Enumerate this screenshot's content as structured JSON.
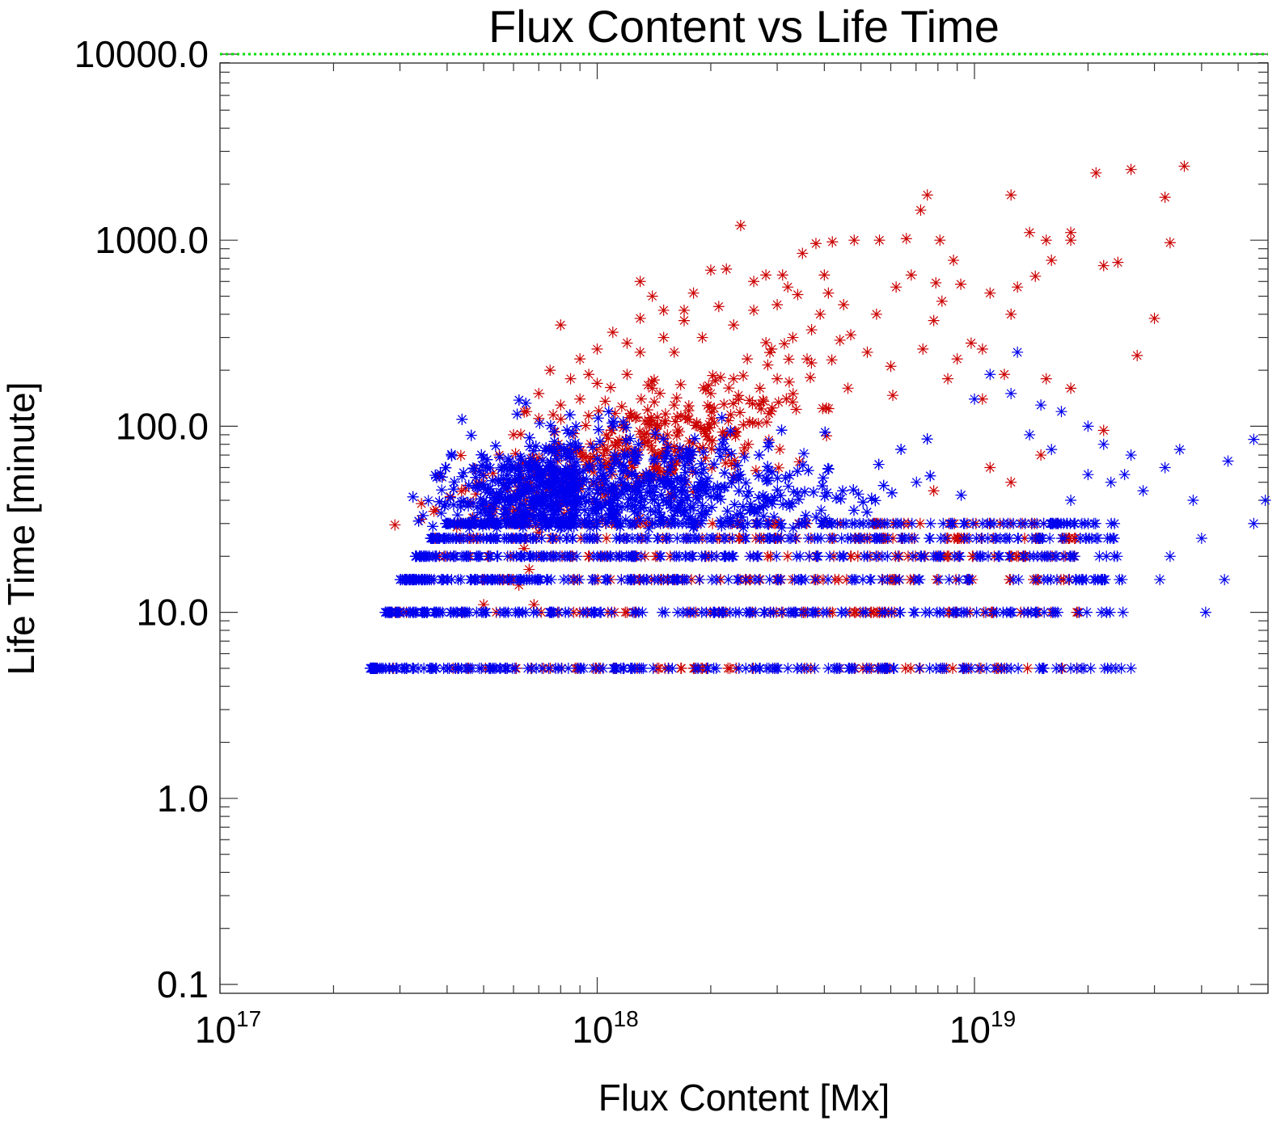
{
  "chart_data": {
    "type": "scatter",
    "title": "Flux Content vs Life Time",
    "xlabel": "Flux Content [Mx]",
    "ylabel": "Life Time [minute]",
    "xscale": "log",
    "yscale": "log",
    "xlim": [
      1e+17,
      6e+19
    ],
    "ylim": [
      0.1,
      10000
    ],
    "xticks": [
      {
        "value": 1e+17,
        "base": "10",
        "exp": "17"
      },
      {
        "value": 1e+18,
        "base": "10",
        "exp": "18"
      },
      {
        "value": 1e+19,
        "base": "10",
        "exp": "19"
      }
    ],
    "yticks": [
      {
        "value": 0.1,
        "label": "0.1"
      },
      {
        "value": 1,
        "label": "1.0"
      },
      {
        "value": 10,
        "label": "10.0"
      },
      {
        "value": 100,
        "label": "100.0"
      },
      {
        "value": 1000,
        "label": "1000.0"
      },
      {
        "value": 10000,
        "label": "10000.0"
      }
    ],
    "marker": "asterisk",
    "reference_line": {
      "y": 10000,
      "color": "#00dd00",
      "style": "dotted"
    },
    "series": [
      {
        "color": "#cc0000",
        "band_levels": [
          5,
          10,
          15,
          20,
          25,
          30
        ],
        "band_x_range": [
          2.5e+17,
          1.9e+19
        ],
        "points": [
          [
            2.4e+18,
            1200
          ],
          [
            2.1e+19,
            2300
          ],
          [
            2.6e+19,
            2400
          ],
          [
            3.6e+19,
            2500
          ],
          [
            3.2e+19,
            1700
          ],
          [
            1.25e+19,
            1750
          ],
          [
            7.5e+18,
            1750
          ],
          [
            7.2e+18,
            1450
          ],
          [
            1.8e+19,
            1100
          ],
          [
            1.8e+19,
            1000
          ],
          [
            1.4e+19,
            1100
          ],
          [
            1.55e+19,
            1000
          ],
          [
            1.6e+19,
            780
          ],
          [
            3.3e+19,
            970
          ],
          [
            2.2e+19,
            730
          ],
          [
            2.4e+19,
            760
          ],
          [
            3e+19,
            380
          ],
          [
            1.45e+19,
            640
          ],
          [
            1.3e+19,
            560
          ],
          [
            1.1e+19,
            520
          ],
          [
            1.25e+19,
            400
          ],
          [
            2.7e+19,
            240
          ],
          [
            1.55e+19,
            180
          ],
          [
            1.2e+19,
            190
          ],
          [
            2.2e+19,
            95
          ],
          [
            1.3e+18,
            600
          ],
          [
            1.3e+18,
            380
          ],
          [
            1.4e+18,
            500
          ],
          [
            1.8e+18,
            520
          ],
          [
            2.2e+18,
            700
          ],
          [
            2e+18,
            690
          ],
          [
            2.8e+18,
            650
          ],
          [
            3.1e+18,
            650
          ],
          [
            3.5e+18,
            850
          ],
          [
            3.8e+18,
            960
          ],
          [
            4.2e+18,
            980
          ],
          [
            4.8e+18,
            1000
          ],
          [
            5.6e+18,
            1000
          ],
          [
            6.6e+18,
            1020
          ],
          [
            8.1e+18,
            1000
          ],
          [
            8.8e+18,
            780
          ],
          [
            7.9e+18,
            590
          ],
          [
            8.2e+18,
            470
          ],
          [
            9.2e+18,
            580
          ],
          [
            7.8e+18,
            370
          ],
          [
            6.8e+18,
            650
          ],
          [
            6.2e+18,
            560
          ],
          [
            5.5e+18,
            400
          ],
          [
            4.5e+18,
            450
          ],
          [
            4e+18,
            650
          ],
          [
            4.4e+18,
            290
          ],
          [
            3.9e+18,
            400
          ],
          [
            3.4e+18,
            510
          ],
          [
            3e+18,
            450
          ],
          [
            2.6e+18,
            420
          ],
          [
            2.3e+18,
            350
          ],
          [
            2.1e+18,
            440
          ],
          [
            1.9e+18,
            300
          ],
          [
            1.7e+18,
            370
          ],
          [
            1.6e+18,
            250
          ],
          [
            1.5e+18,
            420
          ],
          [
            1.2e+18,
            280
          ],
          [
            1.1e+18,
            320
          ],
          [
            1e+18,
            260
          ],
          [
            9e+17,
            230
          ],
          [
            8e+17,
            350
          ],
          [
            7.5e+17,
            200
          ],
          [
            8.5e+17,
            180
          ],
          [
            9.5e+17,
            190
          ],
          [
            7e+17,
            150
          ],
          [
            6.5e+17,
            120
          ],
          [
            7e+17,
            110
          ],
          [
            6e+17,
            90
          ],
          [
            5.5e+17,
            70
          ],
          [
            6.2e+17,
            60
          ],
          [
            5e+17,
            55
          ],
          [
            5.8e+17,
            45
          ],
          [
            6.5e+17,
            40
          ],
          [
            6e+17,
            35
          ],
          [
            7e+17,
            27
          ],
          [
            6.4e+17,
            22
          ],
          [
            6.6e+17,
            17
          ],
          [
            6.2e+17,
            14
          ],
          [
            6.8e+17,
            11
          ],
          [
            5e+17,
            11
          ],
          [
            3.3e+18,
            300
          ],
          [
            3.6e+18,
            230
          ],
          [
            3e+18,
            180
          ],
          [
            2.7e+18,
            160
          ],
          [
            5.2e+18,
            250
          ],
          [
            6e+18,
            210
          ],
          [
            7.3e+18,
            260
          ],
          [
            8.5e+18,
            180
          ],
          [
            9.8e+18,
            280
          ],
          [
            1.05e+19,
            260
          ],
          [
            9e+18,
            230
          ],
          [
            1.05e+19,
            140
          ],
          [
            1.8e+19,
            160
          ],
          [
            1.1e+19,
            60
          ],
          [
            1.5e+19,
            70
          ],
          [
            1.25e+19,
            50
          ],
          [
            7.8e+18,
            45
          ],
          [
            2.3e+18,
            180
          ],
          [
            2e+18,
            150
          ],
          [
            1.6e+18,
            130
          ],
          [
            1.4e+18,
            160
          ],
          [
            1.2e+18,
            190
          ],
          [
            1e+18,
            170
          ],
          [
            2.5e+18,
            230
          ],
          [
            2.9e+18,
            260
          ],
          [
            4.7e+18,
            310
          ],
          [
            3.7e+18,
            330
          ],
          [
            4.1e+18,
            520
          ],
          [
            3.2e+18,
            560
          ],
          [
            2.6e+18,
            600
          ],
          [
            1.7e+18,
            420
          ],
          [
            1.5e+18,
            300
          ],
          [
            1.3e+18,
            250
          ],
          [
            9e+17,
            140
          ],
          [
            8e+17,
            130
          ]
        ],
        "cloud_points": 380
      },
      {
        "color": "#0000ee",
        "band_levels": [
          5,
          10,
          15,
          20,
          25,
          30
        ],
        "band_x_range": [
          2.5e+17,
          2.5e+19
        ],
        "points": [
          [
            5.5e+19,
            85
          ],
          [
            5.9e+19,
            40
          ],
          [
            5.5e+19,
            30
          ],
          [
            4.6e+19,
            15
          ],
          [
            4.1e+19,
            10
          ],
          [
            4.7e+19,
            65
          ],
          [
            3.5e+19,
            75
          ],
          [
            3.2e+19,
            60
          ],
          [
            3.8e+19,
            40
          ],
          [
            4e+19,
            25
          ],
          [
            3.3e+19,
            20
          ],
          [
            3.1e+19,
            15
          ],
          [
            2.6e+19,
            5
          ],
          [
            1.8e+19,
            5
          ],
          [
            2.6e+19,
            70
          ],
          [
            2.2e+19,
            80
          ],
          [
            2e+19,
            55
          ],
          [
            2.3e+19,
            50
          ],
          [
            1.8e+19,
            40
          ],
          [
            2.8e+19,
            45
          ],
          [
            1.3e+19,
            250
          ],
          [
            1.1e+19,
            190
          ],
          [
            1e+19,
            140
          ],
          [
            1.5e+19,
            130
          ],
          [
            1.7e+19,
            120
          ],
          [
            1.25e+19,
            150
          ],
          [
            2e+19,
            100
          ],
          [
            1.4e+19,
            90
          ],
          [
            1.6e+19,
            75
          ],
          [
            2.5e+19,
            55
          ]
        ],
        "cloud_points": 1600
      }
    ]
  }
}
